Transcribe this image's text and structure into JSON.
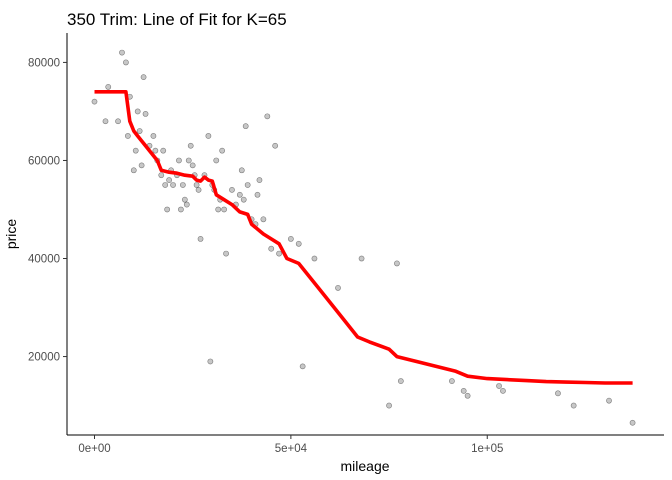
{
  "chart_data": {
    "type": "scatter",
    "title": "350 Trim: Line of Fit for K=65",
    "xlabel": "mileage",
    "ylabel": "price",
    "xlim": [
      -7000,
      145000
    ],
    "ylim": [
      4000,
      86000
    ],
    "x_ticks": [
      0,
      50000,
      100000
    ],
    "x_tick_labels": [
      "0e+00",
      "5e+04",
      "1e+05"
    ],
    "y_ticks": [
      20000,
      40000,
      60000,
      80000
    ],
    "y_tick_labels": [
      "20000",
      "40000",
      "60000",
      "80000"
    ],
    "grid": false,
    "legend": "none",
    "colors": {
      "points": "#000000",
      "fit_line": "#ff0000"
    },
    "series": [
      {
        "type": "scatter",
        "points": [
          [
            0,
            72000
          ],
          [
            2800,
            68000
          ],
          [
            3500,
            75000
          ],
          [
            6000,
            68000
          ],
          [
            7000,
            82000
          ],
          [
            8000,
            80000
          ],
          [
            8500,
            65000
          ],
          [
            9000,
            73000
          ],
          [
            10000,
            58000
          ],
          [
            10500,
            62000
          ],
          [
            11000,
            70000
          ],
          [
            11500,
            66000
          ],
          [
            12000,
            59000
          ],
          [
            12500,
            77000
          ],
          [
            13000,
            69500
          ],
          [
            14000,
            63000
          ],
          [
            15000,
            65000
          ],
          [
            15500,
            62000
          ],
          [
            16000,
            60000
          ],
          [
            17000,
            57000
          ],
          [
            17500,
            62000
          ],
          [
            18000,
            55000
          ],
          [
            18500,
            50000
          ],
          [
            19000,
            56000
          ],
          [
            19500,
            58000
          ],
          [
            20000,
            55000
          ],
          [
            21000,
            57000
          ],
          [
            21500,
            60000
          ],
          [
            22000,
            50000
          ],
          [
            22500,
            55000
          ],
          [
            23000,
            52000
          ],
          [
            23500,
            51000
          ],
          [
            24000,
            60000
          ],
          [
            24500,
            63000
          ],
          [
            25000,
            59000
          ],
          [
            25500,
            57000
          ],
          [
            26000,
            55000
          ],
          [
            26500,
            54000
          ],
          [
            27000,
            44000
          ],
          [
            28000,
            57000
          ],
          [
            29000,
            65000
          ],
          [
            29500,
            19000
          ],
          [
            30000,
            55000
          ],
          [
            30500,
            54000
          ],
          [
            31000,
            60000
          ],
          [
            31500,
            50000
          ],
          [
            32000,
            52000
          ],
          [
            32500,
            62000
          ],
          [
            33000,
            50000
          ],
          [
            33500,
            41000
          ],
          [
            35000,
            54000
          ],
          [
            36000,
            51000
          ],
          [
            37000,
            53000
          ],
          [
            37500,
            58000
          ],
          [
            38000,
            52000
          ],
          [
            38500,
            67000
          ],
          [
            39000,
            55000
          ],
          [
            40000,
            48000
          ],
          [
            41000,
            47000
          ],
          [
            41500,
            53000
          ],
          [
            42000,
            56000
          ],
          [
            43000,
            48000
          ],
          [
            44000,
            69000
          ],
          [
            45000,
            42000
          ],
          [
            46000,
            63000
          ],
          [
            47000,
            41000
          ],
          [
            50000,
            44000
          ],
          [
            52000,
            43000
          ],
          [
            53000,
            18000
          ],
          [
            56000,
            40000
          ],
          [
            62000,
            34000
          ],
          [
            68000,
            40000
          ],
          [
            75000,
            10000
          ],
          [
            77000,
            39000
          ],
          [
            78000,
            15000
          ],
          [
            91000,
            15000
          ],
          [
            94000,
            13000
          ],
          [
            95000,
            12000
          ],
          [
            103000,
            14000
          ],
          [
            104000,
            13000
          ],
          [
            118000,
            12500
          ],
          [
            122000,
            10000
          ],
          [
            131000,
            11000
          ],
          [
            137000,
            6500
          ]
        ]
      },
      {
        "type": "line",
        "points": [
          [
            0,
            74000
          ],
          [
            8000,
            74000
          ],
          [
            9000,
            68000
          ],
          [
            10000,
            66000
          ],
          [
            11000,
            65000
          ],
          [
            12000,
            64000
          ],
          [
            13000,
            63000
          ],
          [
            14000,
            62000
          ],
          [
            15000,
            61000
          ],
          [
            16000,
            60000
          ],
          [
            17000,
            58000
          ],
          [
            19000,
            57600
          ],
          [
            21000,
            57400
          ],
          [
            23000,
            57000
          ],
          [
            25000,
            56800
          ],
          [
            26000,
            56000
          ],
          [
            27000,
            55800
          ],
          [
            28000,
            56600
          ],
          [
            29000,
            56000
          ],
          [
            30000,
            55800
          ],
          [
            31000,
            53000
          ],
          [
            33000,
            52000
          ],
          [
            35000,
            51000
          ],
          [
            37000,
            49500
          ],
          [
            39000,
            49000
          ],
          [
            40000,
            47000
          ],
          [
            43000,
            45000
          ],
          [
            45000,
            44000
          ],
          [
            47000,
            43000
          ],
          [
            49000,
            40000
          ],
          [
            52000,
            39000
          ],
          [
            57000,
            34000
          ],
          [
            62000,
            29000
          ],
          [
            67000,
            24000
          ],
          [
            70000,
            23000
          ],
          [
            75000,
            21500
          ],
          [
            77000,
            20000
          ],
          [
            82000,
            19000
          ],
          [
            87000,
            18000
          ],
          [
            92000,
            17000
          ],
          [
            95000,
            16000
          ],
          [
            100000,
            15500
          ],
          [
            105000,
            15300
          ],
          [
            110000,
            15100
          ],
          [
            115000,
            14900
          ],
          [
            120000,
            14800
          ],
          [
            125000,
            14700
          ],
          [
            130000,
            14600
          ],
          [
            137000,
            14600
          ]
        ]
      }
    ]
  }
}
